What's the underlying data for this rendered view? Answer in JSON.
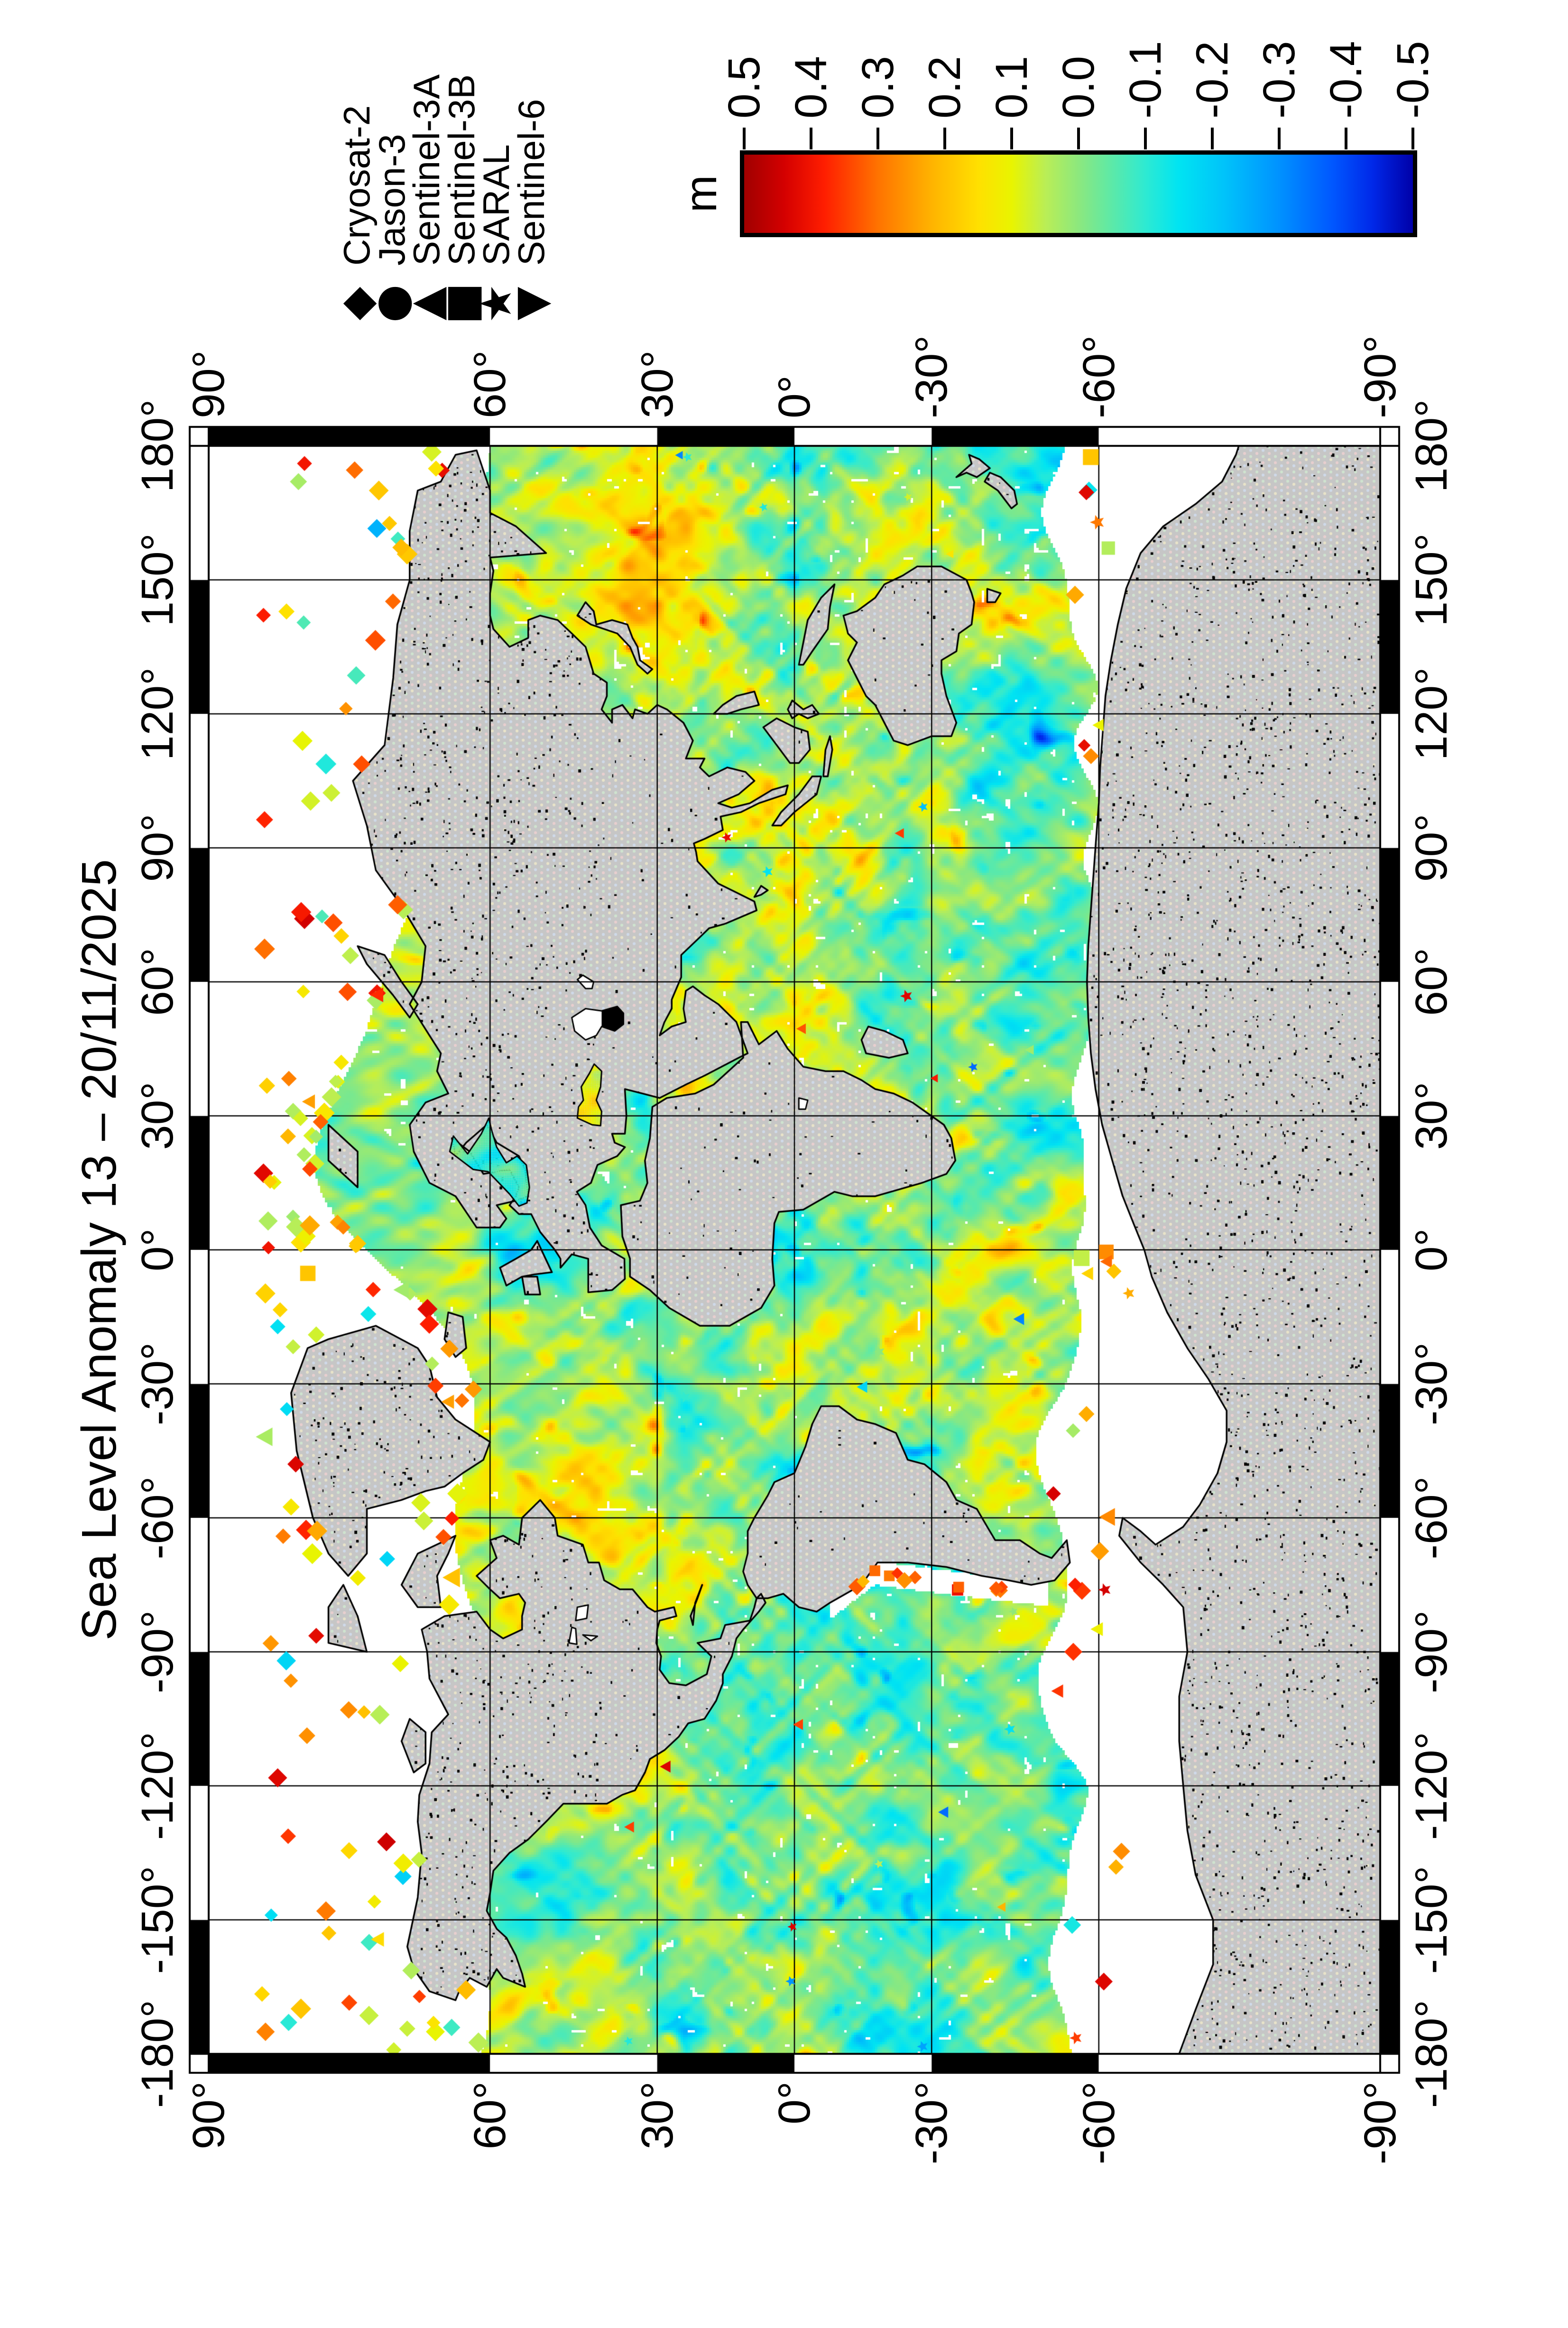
{
  "figure": {
    "title": "Sea Level Anomaly 13 – 20/11/2025",
    "kind": "global sea level anomaly map",
    "projection": "Miller cylindrical",
    "page_rotation_deg": -90
  },
  "legend": {
    "entries": [
      {
        "label": "Cryosat-2",
        "symbol": "diamond",
        "glyph": "◆"
      },
      {
        "label": "Jason-3",
        "symbol": "circle",
        "glyph": "●"
      },
      {
        "label": "Sentinel-3A",
        "symbol": "triangle-up",
        "glyph": "▲"
      },
      {
        "label": "Sentinel-3B",
        "symbol": "square",
        "glyph": "■"
      },
      {
        "label": "SARAL",
        "symbol": "star",
        "glyph": "★"
      },
      {
        "label": "Sentinel-6",
        "symbol": "triangle-down",
        "glyph": "▼"
      }
    ]
  },
  "colorbar": {
    "unit": "m",
    "max": 0.5,
    "min": -0.5,
    "interval": 0.1,
    "tick_labels": [
      "0.5",
      "0.4",
      "0.3",
      "0.2",
      "0.1",
      "0.0",
      "-0.1",
      "-0.2",
      "-0.3",
      "-0.4",
      "-0.5"
    ],
    "stops": [
      {
        "v": 0.5,
        "c": "#a00000"
      },
      {
        "v": 0.44,
        "c": "#d40000"
      },
      {
        "v": 0.38,
        "c": "#ff1e00"
      },
      {
        "v": 0.3,
        "c": "#ff7300"
      },
      {
        "v": 0.22,
        "c": "#ffb300"
      },
      {
        "v": 0.15,
        "c": "#ffe000"
      },
      {
        "v": 0.1,
        "c": "#e9f400"
      },
      {
        "v": 0.05,
        "c": "#baee55"
      },
      {
        "v": 0.0,
        "c": "#8ce87e"
      },
      {
        "v": -0.05,
        "c": "#5ce9a8"
      },
      {
        "v": -0.1,
        "c": "#2eead2"
      },
      {
        "v": -0.15,
        "c": "#00e4f2"
      },
      {
        "v": -0.22,
        "c": "#00c2fa"
      },
      {
        "v": -0.3,
        "c": "#0092ff"
      },
      {
        "v": -0.38,
        "c": "#0057ff"
      },
      {
        "v": -0.44,
        "c": "#0028e8"
      },
      {
        "v": -0.5,
        "c": "#0000a8"
      }
    ]
  },
  "axes": {
    "lon_labels": [
      "-180°",
      "-150°",
      "-120°",
      "-90°",
      "-60°",
      "-30°",
      "0°",
      "30°",
      "60°",
      "90°",
      "120°",
      "150°",
      "180°"
    ],
    "lat_labels": [
      "90°",
      "60°",
      "30°",
      "0°",
      "-30°",
      "-60°",
      "-90°"
    ]
  },
  "map": {
    "land_color": "#c6c6c6",
    "coast_color": "#000000",
    "no_data_color": "#ffffff",
    "grid_color": "#000000",
    "frame_colors": [
      "#000000",
      "#ffffff"
    ]
  }
}
